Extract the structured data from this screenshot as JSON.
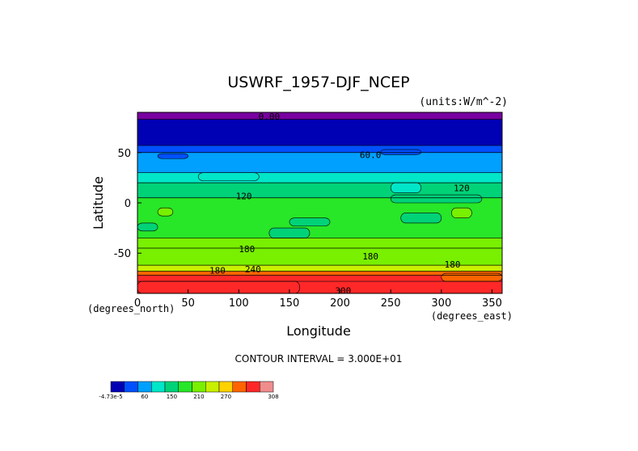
{
  "chart_data": {
    "type": "heatmap",
    "title": "USWRF_1957-DJF_NCEP",
    "units_label": "(units:W/m^-2)",
    "xlabel": "Longitude",
    "ylabel": "Latitude",
    "x_unit_label": "(degrees_east)",
    "y_unit_label": "(degrees_north)",
    "xlim": [
      0,
      360
    ],
    "ylim": [
      -90,
      90
    ],
    "x_ticks": [
      0,
      50,
      100,
      150,
      200,
      250,
      300,
      350
    ],
    "y_ticks": [
      -50,
      0,
      50
    ],
    "contour_interval_text": "CONTOUR INTERVAL = 3.000E+01",
    "contour_labels": [
      {
        "text": "0.00",
        "lon": 130,
        "lat": 86
      },
      {
        "text": "60.0",
        "lon": 230,
        "lat": 48
      },
      {
        "text": "120",
        "lon": 105,
        "lat": 7
      },
      {
        "text": "120",
        "lon": 320,
        "lat": 15
      },
      {
        "text": "180",
        "lon": 108,
        "lat": -46
      },
      {
        "text": "180",
        "lon": 230,
        "lat": -53
      },
      {
        "text": "180",
        "lon": 79,
        "lat": -67
      },
      {
        "text": "240",
        "lon": 114,
        "lat": -66
      },
      {
        "text": "180",
        "lon": 311,
        "lat": -61
      },
      {
        "text": "300",
        "lon": 203,
        "lat": -87
      }
    ],
    "zonal_bands": [
      {
        "lat_top": 90,
        "lat_bottom": 83,
        "value": -0.5
      },
      {
        "lat_top": 83,
        "lat_bottom": 57,
        "value": 5
      },
      {
        "lat_top": 57,
        "lat_bottom": 50,
        "value": 40
      },
      {
        "lat_top": 50,
        "lat_bottom": 30,
        "value": 70
      },
      {
        "lat_top": 30,
        "lat_bottom": 20,
        "value": 100
      },
      {
        "lat_top": 20,
        "lat_bottom": 5,
        "value": 130
      },
      {
        "lat_top": 5,
        "lat_bottom": -35,
        "value": 160
      },
      {
        "lat_top": -35,
        "lat_bottom": -45,
        "value": 185
      },
      {
        "lat_top": -45,
        "lat_bottom": -62,
        "value": 200
      },
      {
        "lat_top": -62,
        "lat_bottom": -68,
        "value": 220
      },
      {
        "lat_top": -68,
        "lat_bottom": -72,
        "value": 250
      },
      {
        "lat_top": -72,
        "lat_bottom": -78,
        "value": 280
      },
      {
        "lat_top": -78,
        "lat_bottom": -90,
        "value": 300
      }
    ],
    "patches": [
      {
        "lon": 240,
        "lat": 53,
        "w": 40,
        "h": 5,
        "value": 40
      },
      {
        "lon": 20,
        "lat": 49,
        "w": 30,
        "h": 5,
        "value": 40
      },
      {
        "lon": 60,
        "lat": 30,
        "w": 60,
        "h": 8,
        "value": 100
      },
      {
        "lon": 250,
        "lat": 20,
        "w": 30,
        "h": 10,
        "value": 100
      },
      {
        "lon": 250,
        "lat": 8,
        "w": 90,
        "h": 8,
        "value": 130
      },
      {
        "lon": 20,
        "lat": -5,
        "w": 15,
        "h": 8,
        "value": 190
      },
      {
        "lon": 130,
        "lat": -25,
        "w": 40,
        "h": 10,
        "value": 130
      },
      {
        "lon": 260,
        "lat": -10,
        "w": 40,
        "h": 10,
        "value": 130
      },
      {
        "lon": 150,
        "lat": -15,
        "w": 40,
        "h": 8,
        "value": 130
      },
      {
        "lon": 310,
        "lat": -5,
        "w": 20,
        "h": 10,
        "value": 190
      },
      {
        "lon": 0,
        "lat": -20,
        "w": 20,
        "h": 8,
        "value": 130
      },
      {
        "lon": 300,
        "lat": -70,
        "w": 60,
        "h": 8,
        "value": 270
      },
      {
        "lon": 0,
        "lat": -78,
        "w": 160,
        "h": 12,
        "value": 300
      }
    ],
    "colorbar": {
      "ticks": [
        "-4.73e-5",
        "60",
        "150",
        "210",
        "270",
        "308"
      ],
      "colors": [
        "#0000b4",
        "#0050ff",
        "#00a0ff",
        "#00e6c8",
        "#00d278",
        "#28e628",
        "#78f000",
        "#c8f000",
        "#ffd200",
        "#ff6400",
        "#ff2828",
        "#f08c8c"
      ]
    },
    "band_colors": [
      {
        "max": 0,
        "color": "#7800a0"
      },
      {
        "max": 30,
        "color": "#0000b4"
      },
      {
        "max": 60,
        "color": "#0050ff"
      },
      {
        "max": 90,
        "color": "#00a0ff"
      },
      {
        "max": 120,
        "color": "#00e6c8"
      },
      {
        "max": 150,
        "color": "#00d278"
      },
      {
        "max": 180,
        "color": "#28e628"
      },
      {
        "max": 210,
        "color": "#78f000"
      },
      {
        "max": 240,
        "color": "#c8f000"
      },
      {
        "max": 270,
        "color": "#ff6400"
      },
      {
        "max": 300,
        "color": "#ff2828"
      },
      {
        "max": 400,
        "color": "#f08c8c"
      }
    ]
  }
}
